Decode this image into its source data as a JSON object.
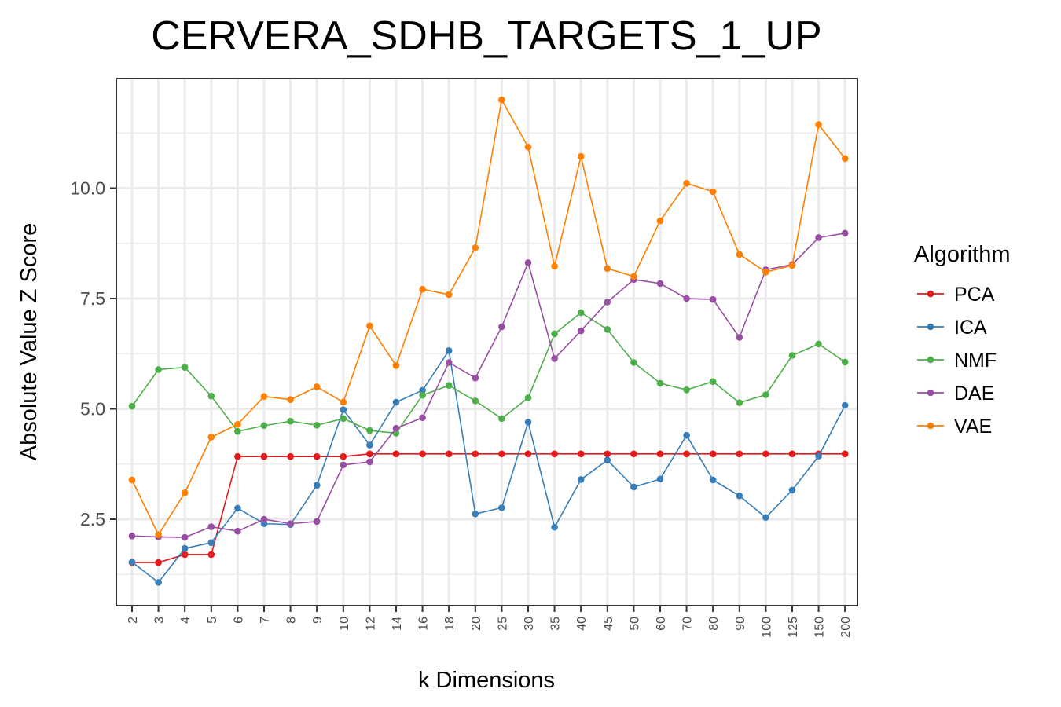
{
  "chart_data": {
    "type": "line",
    "title": "CERVERA_SDHB_TARGETS_1_UP",
    "xlabel": "k Dimensions",
    "ylabel": "Absolute Value Z Score",
    "categories": [
      "2",
      "3",
      "4",
      "5",
      "6",
      "7",
      "8",
      "9",
      "10",
      "12",
      "14",
      "16",
      "18",
      "20",
      "25",
      "30",
      "35",
      "40",
      "45",
      "50",
      "60",
      "70",
      "80",
      "90",
      "100",
      "125",
      "150",
      "200"
    ],
    "y_ticks": [
      2.5,
      5.0,
      7.5,
      10.0
    ],
    "y_tick_labels": [
      "2.5",
      "5.0",
      "7.5",
      "10.0"
    ],
    "ylim": [
      0.5,
      12.3
    ],
    "grid": true,
    "legend": {
      "title": "Algorithm",
      "position": "right"
    },
    "series": [
      {
        "name": "PCA",
        "color": "#e41a1c",
        "values": [
          1.52,
          1.52,
          1.7,
          1.7,
          3.92,
          3.92,
          3.92,
          3.92,
          3.92,
          3.98,
          3.98,
          3.98,
          3.98,
          3.98,
          3.98,
          3.98,
          3.98,
          3.98,
          3.98,
          3.98,
          3.98,
          3.98,
          3.98,
          3.98,
          3.98,
          3.98,
          3.98,
          3.98
        ]
      },
      {
        "name": "ICA",
        "color": "#377eb8",
        "values": [
          1.53,
          1.07,
          1.84,
          1.97,
          2.75,
          2.4,
          2.38,
          3.27,
          4.98,
          4.18,
          5.15,
          5.42,
          6.32,
          2.62,
          2.76,
          4.7,
          2.32,
          3.4,
          3.84,
          3.23,
          3.41,
          4.4,
          3.39,
          3.03,
          2.54,
          3.16,
          3.93,
          5.08
        ]
      },
      {
        "name": "NMF",
        "color": "#4daf4a",
        "values": [
          5.06,
          5.89,
          5.94,
          5.29,
          4.49,
          4.62,
          4.72,
          4.63,
          4.78,
          4.51,
          4.45,
          5.31,
          5.53,
          5.18,
          4.78,
          5.25,
          6.7,
          7.18,
          6.8,
          6.05,
          5.58,
          5.43,
          5.62,
          5.14,
          5.32,
          6.21,
          6.47,
          6.06
        ]
      },
      {
        "name": "DAE",
        "color": "#984ea3",
        "values": [
          2.12,
          2.1,
          2.09,
          2.33,
          2.23,
          2.5,
          2.4,
          2.45,
          3.73,
          3.8,
          4.56,
          4.8,
          6.05,
          5.7,
          6.86,
          8.31,
          6.14,
          6.77,
          7.42,
          7.93,
          7.84,
          7.5,
          7.48,
          6.62,
          8.15,
          8.27,
          8.88,
          8.98
        ]
      },
      {
        "name": "VAE",
        "color": "#ff7f00",
        "values": [
          3.39,
          2.15,
          3.1,
          4.36,
          4.65,
          5.28,
          5.21,
          5.5,
          5.15,
          6.88,
          5.98,
          7.71,
          7.59,
          8.65,
          12.0,
          10.93,
          8.23,
          10.72,
          8.18,
          8.0,
          9.26,
          10.11,
          9.92,
          8.5,
          8.1,
          8.25,
          11.44,
          10.67
        ]
      }
    ]
  }
}
